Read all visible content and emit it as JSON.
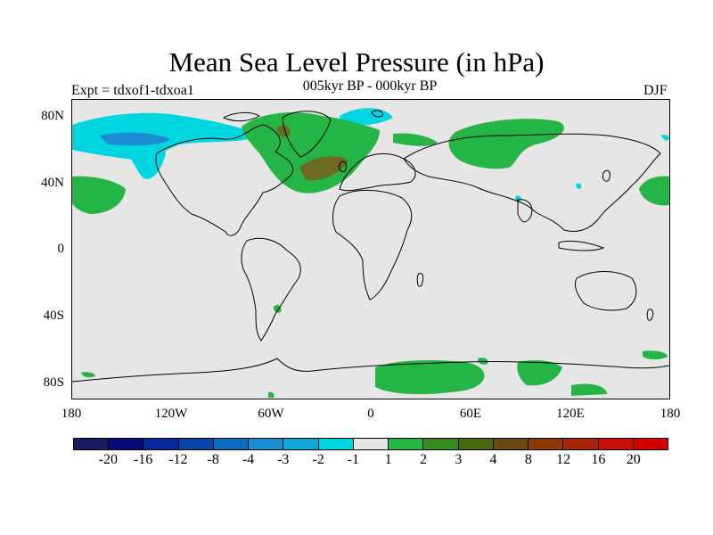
{
  "header": {
    "title": "Mean Sea Level Pressure (in hPa)",
    "subtitle": "005kyr BP - 000kyr BP",
    "expt": "Expt = tdxof1-tdxoa1",
    "season": "DJF"
  },
  "axes": {
    "lat_labels": [
      "80N",
      "40N",
      "0",
      "40S",
      "80S"
    ],
    "lon_labels": [
      "180",
      "120W",
      "60W",
      "0",
      "60E",
      "120E",
      "180"
    ]
  },
  "colorbar": {
    "colors": [
      "#1a1a60",
      "#0a0a78",
      "#06289a",
      "#0a46a8",
      "#0d6abf",
      "#1a8ed0",
      "#12a8d6",
      "#00d6e0",
      "#e6e6e6",
      "#25b547",
      "#3a8a1e",
      "#4a6a12",
      "#6a4a0e",
      "#8a3a08",
      "#a82408",
      "#c8100a",
      "#d40000"
    ],
    "labels": [
      "-20",
      "-16",
      "-12",
      "-8",
      "-4",
      "-3",
      "-2",
      "-1",
      "1",
      "2",
      "3",
      "4",
      "8",
      "12",
      "16",
      "20"
    ]
  },
  "colors": {
    "background_no_change": "#e6e6e6",
    "positive_small": "#25b547",
    "positive_medium": "#6a6a20",
    "negative_small": "#00d6e0",
    "negative_medium": "#1a8ed0",
    "coastline": "#000000"
  }
}
